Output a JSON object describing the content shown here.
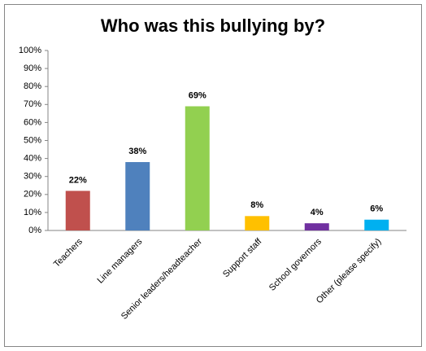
{
  "chart_data": {
    "type": "bar",
    "title": "Who was this bullying by?",
    "categories": [
      "Teachers",
      "Line managers",
      "Senior leaders/headteacher",
      "Support staff",
      "School governors",
      "Other (please specify)"
    ],
    "values": [
      22,
      38,
      69,
      8,
      4,
      6
    ],
    "value_labels": [
      "22%",
      "38%",
      "69%",
      "8%",
      "4%",
      "6%"
    ],
    "colors": [
      "#c0504d",
      "#4f81bd",
      "#92d050",
      "#ffc000",
      "#7030a0",
      "#00b0f0"
    ],
    "ylim": [
      0,
      100
    ],
    "yticks": [
      {
        "value": 0,
        "label": "0%"
      },
      {
        "value": 10,
        "label": "10%"
      },
      {
        "value": 20,
        "label": "20%"
      },
      {
        "value": 30,
        "label": "30%"
      },
      {
        "value": 40,
        "label": "40%"
      },
      {
        "value": 50,
        "label": "50%"
      },
      {
        "value": 60,
        "label": "60%"
      },
      {
        "value": 70,
        "label": "70%"
      },
      {
        "value": 80,
        "label": "80%"
      },
      {
        "value": 90,
        "label": "90%"
      },
      {
        "value": 100,
        "label": "100%"
      }
    ],
    "grid": false
  }
}
